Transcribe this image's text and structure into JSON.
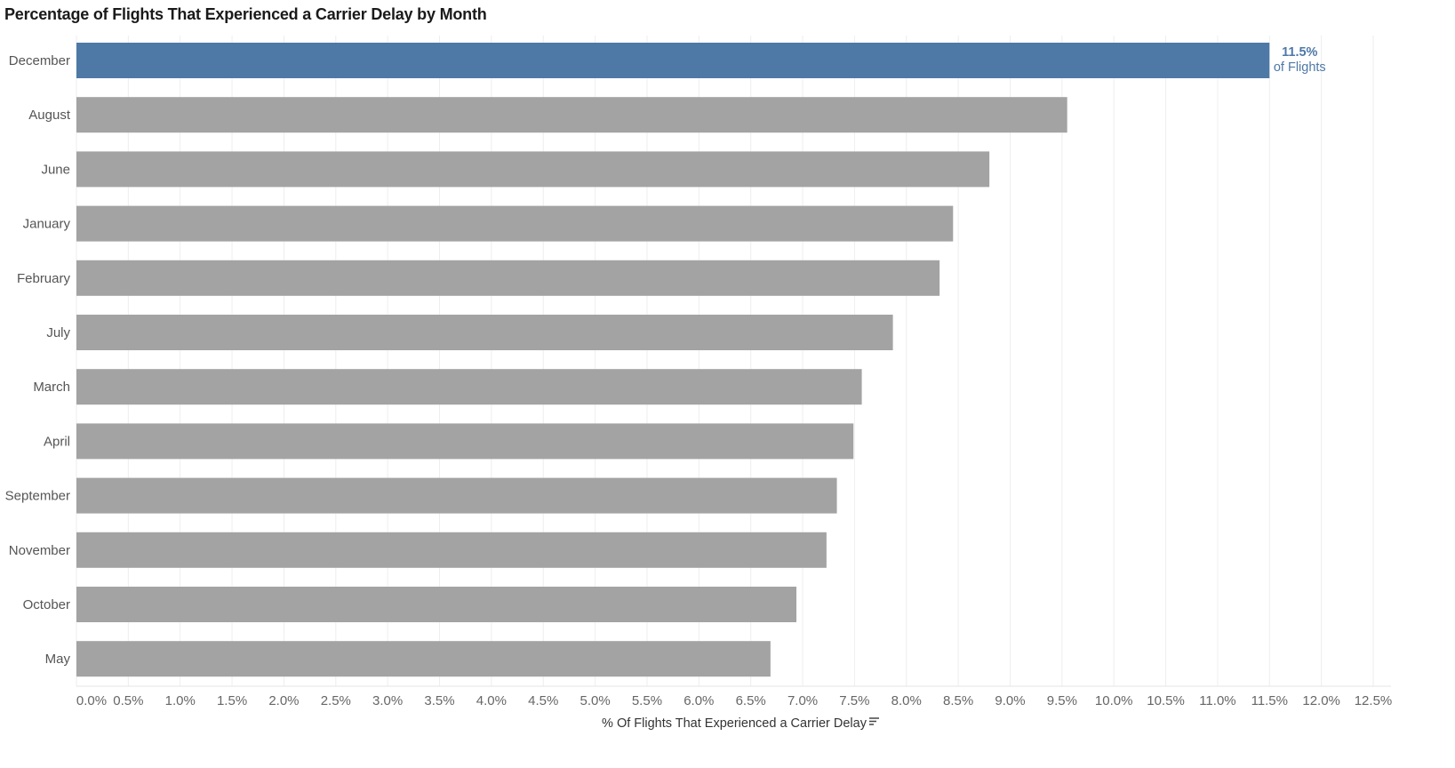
{
  "chart_data": {
    "type": "bar",
    "orientation": "horizontal",
    "title": "Percentage of Flights That Experienced a Carrier Delay by Month",
    "xlabel": "% Of Flights That Experienced a Carrier Delay",
    "ylabel": "",
    "categories": [
      "December",
      "August",
      "June",
      "January",
      "February",
      "July",
      "March",
      "April",
      "September",
      "November",
      "October",
      "May"
    ],
    "values": [
      11.5,
      9.55,
      8.8,
      8.45,
      8.32,
      7.87,
      7.57,
      7.49,
      7.33,
      7.23,
      6.94,
      6.69
    ],
    "xlim": [
      0,
      12.5
    ],
    "xticks": [
      "0.0%",
      "0.5%",
      "1.0%",
      "1.5%",
      "2.0%",
      "2.5%",
      "3.0%",
      "3.5%",
      "4.0%",
      "4.5%",
      "5.0%",
      "5.5%",
      "6.0%",
      "6.5%",
      "7.0%",
      "7.5%",
      "8.0%",
      "8.5%",
      "9.0%",
      "9.5%",
      "10.0%",
      "10.5%",
      "11.0%",
      "11.5%",
      "12.0%",
      "12.5%"
    ],
    "grid": "vertical",
    "highlight": {
      "category": "December",
      "value_label": "11.5%",
      "sub_label": "of Flights"
    },
    "colors": {
      "highlight": "#4e79a7",
      "default": "#a3a3a3",
      "grid": "#eeeeee"
    },
    "sorted_descending": true
  }
}
